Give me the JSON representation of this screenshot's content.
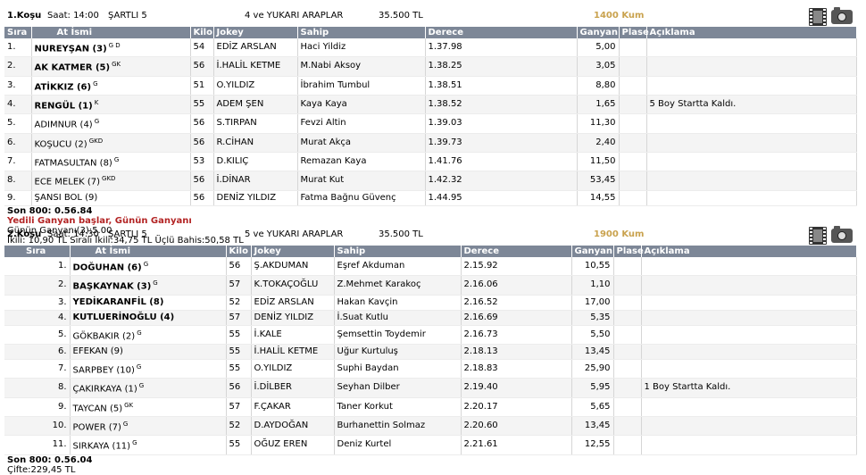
{
  "columns": {
    "sira": "Sıra",
    "horse": "At İsmi",
    "kilo": "Kilo",
    "jockey": "Jokey",
    "owner": "Sahip",
    "time": "Derece",
    "ganyan": "Ganyan",
    "plase": "Plase",
    "note": "Açıklama"
  },
  "colors": {
    "header_bg": "#7d8797",
    "distance": "#c9a24e",
    "notice": "#b32424"
  },
  "races": [
    {
      "number": "1.Koşu",
      "time": "Saat: 14:00",
      "condition": "ŞARTLI 5",
      "class": "4 ve YUKARI ARAPLAR",
      "prize": "35.500 TL",
      "distance": "1400 Kum",
      "icons": [
        "film-icon",
        "camera-icon"
      ],
      "rows": [
        {
          "idx": "1.",
          "horse": "NUREYŞAN (3)",
          "sup": "G D",
          "bold": true,
          "kilo": "54",
          "jockey": "EDİZ ARSLAN",
          "owner": "Haci Yildiz",
          "time": "1.37.98",
          "ganyan": "5,00",
          "plase": "",
          "note": ""
        },
        {
          "idx": "2.",
          "horse": "AK KATMER (5)",
          "sup": "GK",
          "bold": true,
          "kilo": "56",
          "jockey": "İ.HALİL KETME",
          "owner": "M.Nabi Aksoy",
          "time": "1.38.25",
          "ganyan": "3,05",
          "plase": "",
          "note": ""
        },
        {
          "idx": "3.",
          "horse": "ATİKKIZ (6)",
          "sup": "G",
          "bold": true,
          "kilo": "51",
          "jockey": "O.YILDIZ",
          "owner": "İbrahim Tumbul",
          "time": "1.38.51",
          "ganyan": "8,80",
          "plase": "",
          "note": ""
        },
        {
          "idx": "4.",
          "horse": "RENGÜL (1)",
          "sup": "K",
          "bold": true,
          "kilo": "55",
          "jockey": "ADEM ŞEN",
          "owner": "Kaya Kaya",
          "time": "1.38.52",
          "ganyan": "1,65",
          "plase": "",
          "note": "5 Boy Startta Kaldı."
        },
        {
          "idx": "5.",
          "horse": "ADIMNUR (4)",
          "sup": "G",
          "bold": false,
          "kilo": "56",
          "jockey": "S.TIRPAN",
          "owner": "Fevzi Altin",
          "time": "1.39.03",
          "ganyan": "11,30",
          "plase": "",
          "note": ""
        },
        {
          "idx": "6.",
          "horse": "KOŞUCU (2)",
          "sup": "GKD",
          "bold": false,
          "kilo": "56",
          "jockey": "R.CİHAN",
          "owner": "Murat Akça",
          "time": "1.39.73",
          "ganyan": "2,40",
          "plase": "",
          "note": ""
        },
        {
          "idx": "7.",
          "horse": "FATMASULTAN (8)",
          "sup": "G",
          "bold": false,
          "kilo": "53",
          "jockey": "D.KILIÇ",
          "owner": "Remazan Kaya",
          "time": "1.41.76",
          "ganyan": "11,50",
          "plase": "",
          "note": ""
        },
        {
          "idx": "8.",
          "horse": "ECE MELEK (7)",
          "sup": "GKD",
          "bold": false,
          "kilo": "56",
          "jockey": "İ.DİNAR",
          "owner": "Murat Kut",
          "time": "1.42.32",
          "ganyan": "53,45",
          "plase": "",
          "note": ""
        },
        {
          "idx": "9.",
          "horse": "ŞANSI BOL (9)",
          "sup": "",
          "bold": false,
          "kilo": "56",
          "jockey": "DENİZ YILDIZ",
          "owner": "Fatma Bağnu Güvenç",
          "time": "1.44.95",
          "ganyan": "14,55",
          "plase": "",
          "note": ""
        }
      ],
      "last800": "Son 800: 0.56.84",
      "notice": "Yedili Ganyan başlar, Günün Ganyanı",
      "extra": [
        "Günün Ganyanı(3):5.00",
        "İkili: 10,90 TL Sıralı İkili:34,75 TL Üçlü Bahis:50,58 TL"
      ]
    },
    {
      "number": "2.Koşu",
      "time": "Saat: 14:30",
      "condition": "ŞARTLI 5",
      "class": "5 ve YUKARI ARAPLAR",
      "prize": "35.500 TL",
      "distance": "1900 Kum",
      "icons": [
        "film-icon",
        "camera-icon"
      ],
      "rows": [
        {
          "idx": "1.",
          "horse": "DOĞUHAN (6)",
          "sup": "G",
          "bold": true,
          "kilo": "56",
          "jockey": "Ş.AKDUMAN",
          "owner": "Eşref Akduman",
          "time": "2.15.92",
          "ganyan": "10,55",
          "plase": "",
          "note": ""
        },
        {
          "idx": "2.",
          "horse": "BAŞKAYNAK (3)",
          "sup": "G",
          "bold": true,
          "kilo": "57",
          "jockey": "K.TOKAÇOĞLU",
          "owner": "Z.Mehmet Karakoç",
          "time": "2.16.06",
          "ganyan": "1,10",
          "plase": "",
          "note": ""
        },
        {
          "idx": "3.",
          "horse": "YEDİKARANFİL (8)",
          "sup": "",
          "bold": true,
          "kilo": "52",
          "jockey": "EDİZ ARSLAN",
          "owner": "Hakan Kavçin",
          "time": "2.16.52",
          "ganyan": "17,00",
          "plase": "",
          "note": ""
        },
        {
          "idx": "4.",
          "horse": "KUTLUERİNOĞLU (4)",
          "sup": "",
          "bold": true,
          "kilo": "57",
          "jockey": "DENİZ YILDIZ",
          "owner": "İ.Suat Kutlu",
          "time": "2.16.69",
          "ganyan": "5,35",
          "plase": "",
          "note": ""
        },
        {
          "idx": "5.",
          "horse": "GÖKBAKIR (2)",
          "sup": "G",
          "bold": false,
          "kilo": "55",
          "jockey": "İ.KALE",
          "owner": "Şemsettin Toydemir",
          "time": "2.16.73",
          "ganyan": "5,50",
          "plase": "",
          "note": ""
        },
        {
          "idx": "6.",
          "horse": "EFEKAN (9)",
          "sup": "",
          "bold": false,
          "kilo": "55",
          "jockey": "İ.HALİL KETME",
          "owner": "Uğur Kurtuluş",
          "time": "2.18.13",
          "ganyan": "13,45",
          "plase": "",
          "note": ""
        },
        {
          "idx": "7.",
          "horse": "SARPBEY (10)",
          "sup": "G",
          "bold": false,
          "kilo": "55",
          "jockey": "O.YILDIZ",
          "owner": "Suphi Baydan",
          "time": "2.18.83",
          "ganyan": "25,90",
          "plase": "",
          "note": ""
        },
        {
          "idx": "8.",
          "horse": "ÇAKIRKAYA (1)",
          "sup": "G",
          "bold": false,
          "kilo": "56",
          "jockey": "İ.DİLBER",
          "owner": "Seyhan Dilber",
          "time": "2.19.40",
          "ganyan": "5,95",
          "plase": "",
          "note": "1 Boy Startta Kaldı."
        },
        {
          "idx": "9.",
          "horse": "TAYCAN (5)",
          "sup": "GK",
          "bold": false,
          "kilo": "57",
          "jockey": "F.ÇAKAR",
          "owner": "Taner Korkut",
          "time": "2.20.17",
          "ganyan": "5,65",
          "plase": "",
          "note": ""
        },
        {
          "idx": "10.",
          "horse": "POWER (7)",
          "sup": "G",
          "bold": false,
          "kilo": "52",
          "jockey": "D.AYDOĞAN",
          "owner": "Burhanettin Solmaz",
          "time": "2.20.60",
          "ganyan": "13,45",
          "plase": "",
          "note": ""
        },
        {
          "idx": "11.",
          "horse": "SIRKAYA (11)",
          "sup": "G",
          "bold": false,
          "kilo": "55",
          "jockey": "OĞUZ EREN",
          "owner": "Deniz Kurtel",
          "time": "2.21.61",
          "ganyan": "12,55",
          "plase": "",
          "note": ""
        }
      ],
      "last800": "Son 800: 0.56.04",
      "notice": "",
      "extra": [
        "Çifte:229,45 TL"
      ]
    }
  ]
}
